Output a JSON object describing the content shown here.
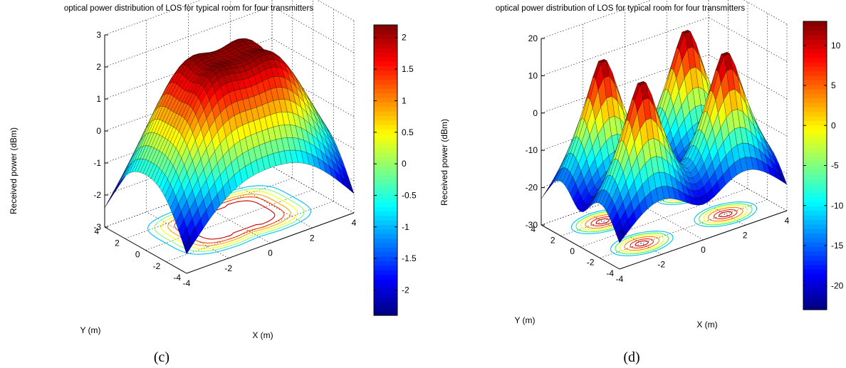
{
  "chart_data": [
    {
      "type": "surface3d",
      "title": "optical power distribution of LOS for typical room for four transmitters",
      "caption": "(c)",
      "xlabel": "X (m)",
      "ylabel": "Y (m)",
      "zlabel": "Received power (dBm)",
      "xlim": [
        -4,
        4
      ],
      "ylim": [
        -4,
        4
      ],
      "zlim": [
        -3,
        3
      ],
      "x_ticks": [
        -4,
        -2,
        0,
        2,
        4
      ],
      "y_ticks": [
        -4,
        -2,
        0,
        2,
        4
      ],
      "z_ticks": [
        -3,
        -2,
        -1,
        0,
        1,
        2,
        3
      ],
      "color_range": [
        -2.4,
        2.2
      ],
      "colorbar_ticks": [
        -2,
        -1.5,
        -1,
        -0.5,
        0,
        0.5,
        1,
        1.5,
        2
      ],
      "colormap": "jet",
      "transmitters": [
        [
          -1.25,
          -1.25
        ],
        [
          -1.25,
          1.25
        ],
        [
          1.25,
          -1.25
        ],
        [
          1.25,
          1.25
        ]
      ],
      "surface_extremes": {
        "center_max_dBm": 2.2,
        "corner_min_dBm": -2.4
      },
      "contour_projection": true,
      "grid": true
    },
    {
      "type": "surface3d",
      "title": "optical power distribution of LOS for typical room for four transmitters",
      "caption": "(d)",
      "xlabel": "X (m)",
      "ylabel": "Y (m)",
      "zlabel": "Received power (dBm)",
      "xlim": [
        -4,
        4
      ],
      "ylim": [
        -4,
        4
      ],
      "zlim": [
        -30,
        20
      ],
      "x_ticks": [
        -4,
        -2,
        0,
        2,
        4
      ],
      "y_ticks": [
        -4,
        -2,
        0,
        2,
        4
      ],
      "z_ticks": [
        -30,
        -20,
        -10,
        0,
        10,
        20
      ],
      "color_range": [
        -23,
        13
      ],
      "colorbar_ticks": [
        -20,
        -15,
        -10,
        -5,
        0,
        5,
        10
      ],
      "colormap": "jet",
      "transmitters": [
        [
          -2,
          -2
        ],
        [
          -2,
          2
        ],
        [
          2,
          -2
        ],
        [
          2,
          2
        ]
      ],
      "surface_extremes": {
        "peak_max_dBm": 13,
        "valley_min_dBm": -23
      },
      "contour_projection": true,
      "grid": true
    }
  ]
}
